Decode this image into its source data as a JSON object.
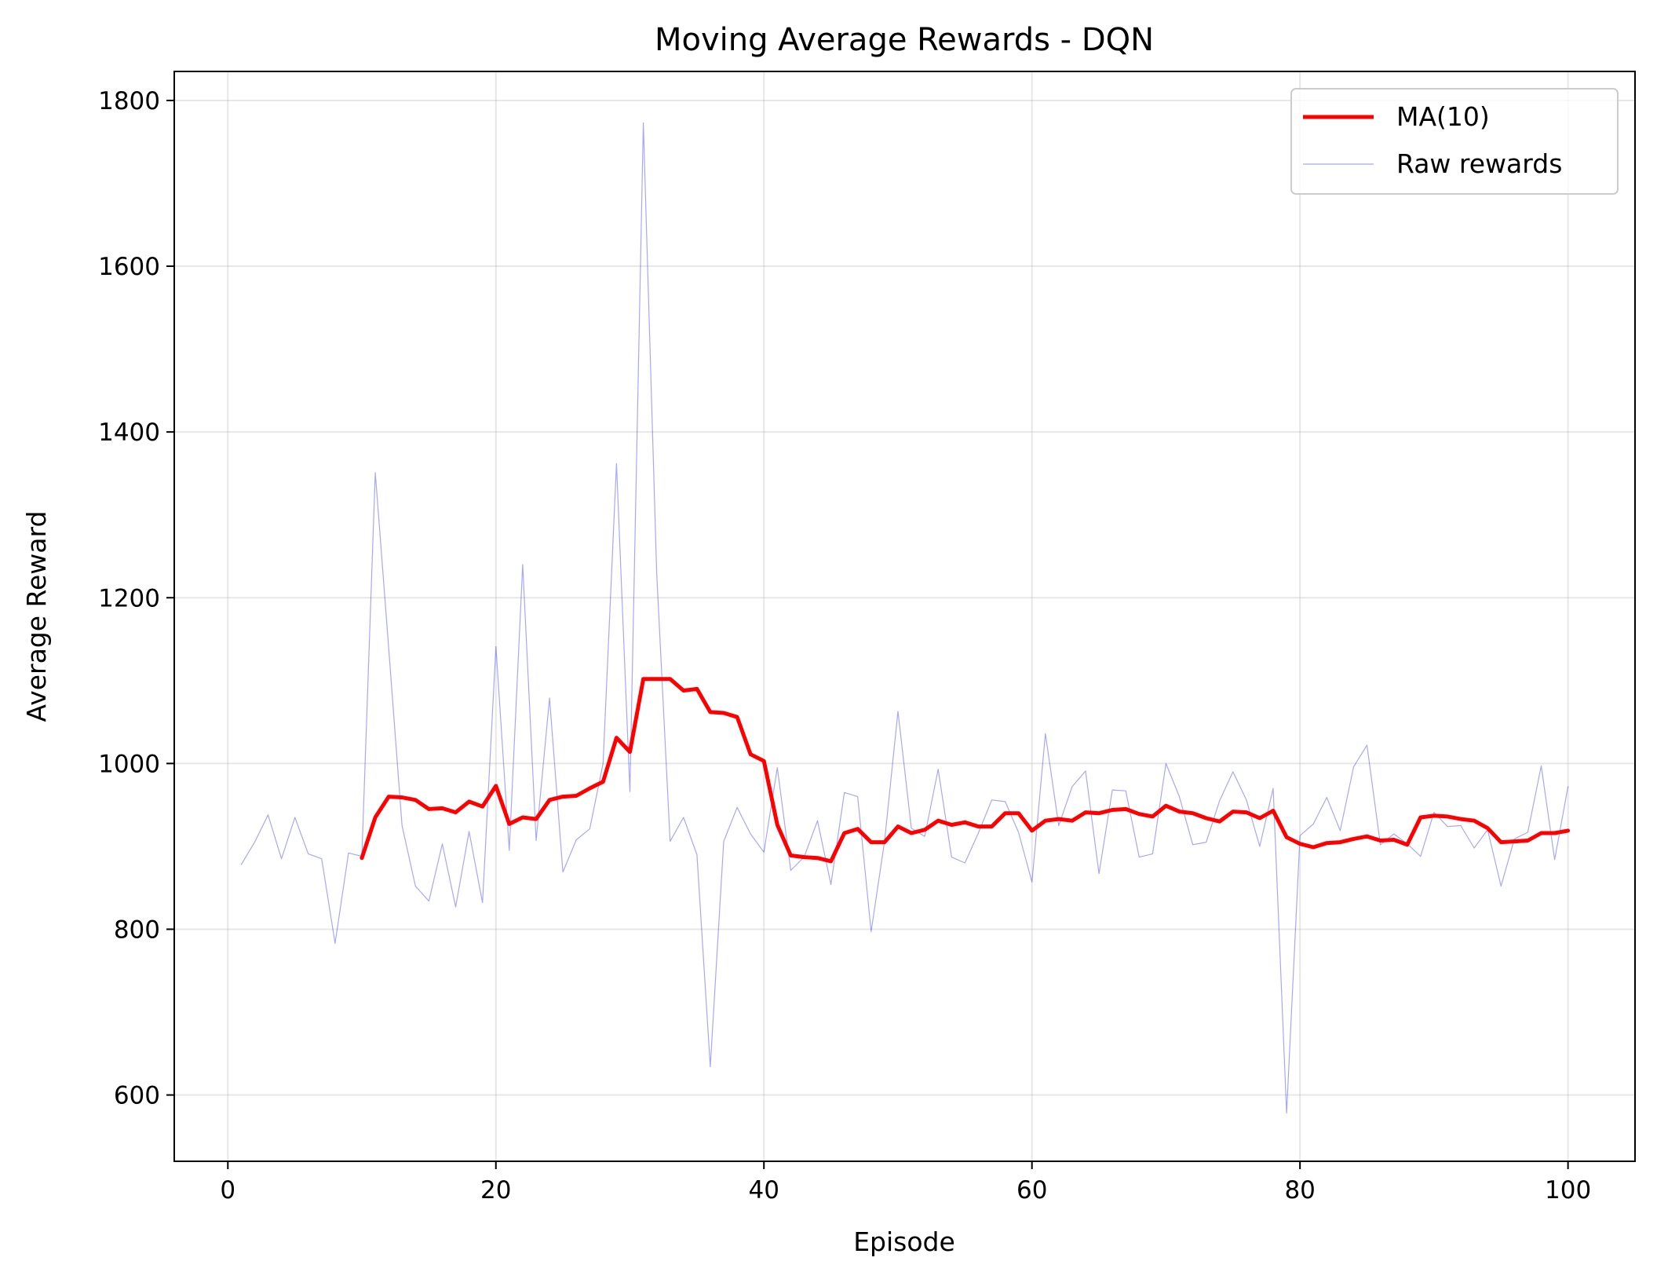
{
  "chart_data": {
    "type": "line",
    "title": "Moving Average Rewards - DQN",
    "xlabel": "Episode",
    "ylabel": "Average Reward",
    "xlim": [
      -4,
      105
    ],
    "ylim": [
      520,
      1835
    ],
    "xticks": [
      0,
      20,
      40,
      60,
      80,
      100
    ],
    "yticks": [
      600,
      800,
      1000,
      1200,
      1400,
      1600,
      1800
    ],
    "grid": true,
    "legend_position": "top-right",
    "colors": {
      "ma": "#ff0000",
      "raw": "#0000ff"
    },
    "series": [
      {
        "name": "MA(10)",
        "x": [
          10,
          11,
          12,
          13,
          14,
          15,
          16,
          17,
          18,
          19,
          20,
          21,
          22,
          23,
          24,
          25,
          26,
          27,
          28,
          29,
          30,
          31,
          32,
          33,
          34,
          35,
          36,
          37,
          38,
          39,
          40,
          41,
          42,
          43,
          44,
          45,
          46,
          47,
          48,
          49,
          50,
          51,
          52,
          53,
          54,
          55,
          56,
          57,
          58,
          59,
          60,
          61,
          62,
          63,
          64,
          65,
          66,
          67,
          68,
          69,
          70,
          71,
          72,
          73,
          74,
          75,
          76,
          77,
          78,
          79,
          80,
          81,
          82,
          83,
          84,
          85,
          86,
          87,
          88,
          89,
          90,
          91,
          92,
          93,
          94,
          95,
          96,
          97,
          98,
          99,
          100
        ],
        "values": [
          886,
          935,
          960,
          959,
          956,
          945,
          946,
          941,
          954,
          948,
          973,
          927,
          935,
          933,
          956,
          960,
          961,
          970,
          978,
          1031,
          1014,
          1102,
          1102,
          1102,
          1088,
          1090,
          1062,
          1061,
          1056,
          1011,
          1003,
          926,
          889,
          887,
          886,
          882,
          916,
          921,
          905,
          905,
          924,
          916,
          920,
          931,
          926,
          929,
          924,
          924,
          940,
          940,
          919,
          931,
          933,
          931,
          941,
          940,
          944,
          945,
          939,
          936,
          949,
          942,
          940,
          934,
          930,
          942,
          941,
          934,
          943,
          911,
          903,
          899,
          904,
          905,
          909,
          912,
          907,
          908,
          902,
          935,
          937,
          936,
          933,
          931,
          922,
          905,
          906,
          907,
          916,
          916,
          919
        ]
      },
      {
        "name": "Raw rewards",
        "x": [
          1,
          2,
          3,
          4,
          5,
          6,
          7,
          8,
          9,
          10,
          11,
          12,
          13,
          14,
          15,
          16,
          17,
          18,
          19,
          20,
          21,
          22,
          23,
          24,
          25,
          26,
          27,
          28,
          29,
          30,
          31,
          32,
          33,
          34,
          35,
          36,
          37,
          38,
          39,
          40,
          41,
          42,
          43,
          44,
          45,
          46,
          47,
          48,
          49,
          50,
          51,
          52,
          53,
          54,
          55,
          56,
          57,
          58,
          59,
          60,
          61,
          62,
          63,
          64,
          65,
          66,
          67,
          68,
          69,
          70,
          71,
          72,
          73,
          74,
          75,
          76,
          77,
          78,
          79,
          80,
          81,
          82,
          83,
          84,
          85,
          86,
          87,
          88,
          89,
          90,
          91,
          92,
          93,
          94,
          95,
          96,
          97,
          98,
          99,
          100
        ],
        "values": [
          878,
          905,
          938,
          885,
          935,
          891,
          885,
          783,
          892,
          888,
          1351,
          1139,
          925,
          852,
          834,
          903,
          827,
          918,
          832,
          1141,
          895,
          1240,
          907,
          1079,
          869,
          908,
          921,
          1000,
          1362,
          966,
          1773,
          1230,
          906,
          935,
          890,
          634,
          906,
          947,
          915,
          893,
          995,
          871,
          887,
          931,
          854,
          965,
          960,
          797,
          906,
          1063,
          922,
          912,
          993,
          887,
          880,
          916,
          956,
          954,
          917,
          857,
          1036,
          925,
          972,
          991,
          867,
          968,
          967,
          887,
          891,
          1000,
          960,
          902,
          905,
          955,
          990,
          956,
          900,
          970,
          578,
          913,
          927,
          959,
          919,
          996,
          1022,
          902,
          915,
          903,
          888,
          941,
          924,
          925,
          898,
          920,
          852,
          909,
          917,
          997,
          884,
          972
        ]
      }
    ]
  }
}
